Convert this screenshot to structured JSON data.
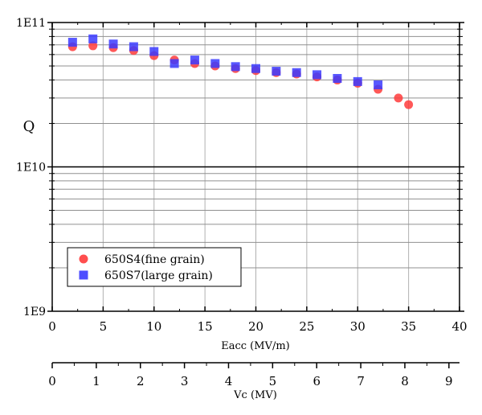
{
  "chart_data": {
    "type": "scatter",
    "xlabel": "Eacc (MV/m)",
    "ylabel": "Q",
    "xlim": [
      0,
      40
    ],
    "ylim": [
      1000000000.0,
      100000000000.0
    ],
    "yscale": "log",
    "grid": true,
    "legend_placement": "bottom-left",
    "x_ticks": [
      "0",
      "5",
      "10",
      "15",
      "20",
      "25",
      "30",
      "35",
      "40"
    ],
    "y_ticks": [
      "1E9",
      "1E10",
      "1E11"
    ],
    "secondary_x_axis": {
      "label": "Vc (MV)",
      "xlim": [
        0,
        9.24
      ],
      "ticks": [
        "0",
        "1",
        "2",
        "3",
        "4",
        "5",
        "6",
        "7",
        "8",
        "9"
      ]
    },
    "series": [
      {
        "name": "650S4(fine grain)",
        "marker": "circle",
        "color": "#ff3b3b",
        "x": [
          2,
          4,
          6,
          8,
          10,
          12,
          14,
          16,
          18,
          20,
          22,
          24,
          26,
          28,
          30,
          32,
          34,
          35
        ],
        "y": [
          68000000000.0,
          69000000000.0,
          67000000000.0,
          64000000000.0,
          59000000000.0,
          55000000000.0,
          52000000000.0,
          50000000000.0,
          48000000000.0,
          46500000000.0,
          45000000000.0,
          44000000000.0,
          42000000000.0,
          40000000000.0,
          38000000000.0,
          34500000000.0,
          30000000000.0,
          27000000000.0
        ]
      },
      {
        "name": "650S7(large grain)",
        "marker": "square",
        "color": "#3b3bff",
        "x": [
          2,
          4,
          6,
          8,
          10,
          12,
          14,
          16,
          18,
          20,
          22,
          24,
          26,
          28,
          30,
          32
        ],
        "y": [
          73000000000.0,
          77000000000.0,
          71000000000.0,
          68000000000.0,
          63000000000.0,
          52000000000.0,
          55000000000.0,
          52000000000.0,
          49500000000.0,
          48000000000.0,
          46000000000.0,
          45000000000.0,
          43500000000.0,
          41000000000.0,
          39000000000.0,
          37000000000.0
        ]
      }
    ]
  }
}
